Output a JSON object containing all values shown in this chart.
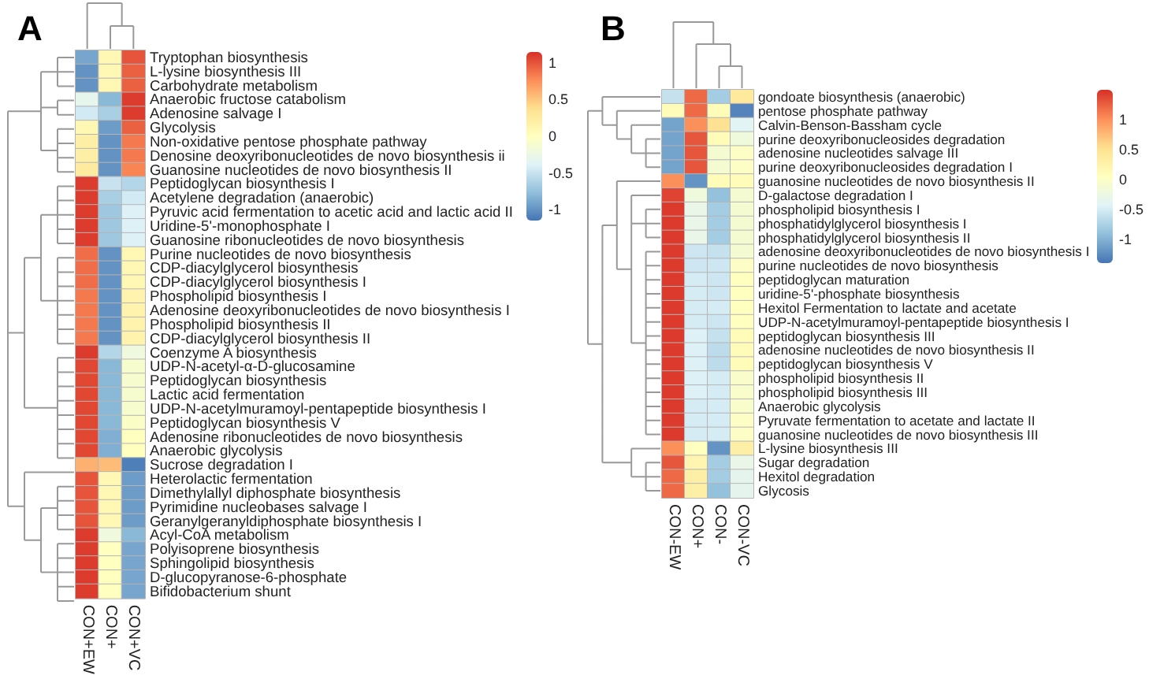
{
  "chart_data": [
    {
      "type": "heatmap",
      "title": "A",
      "categories": [
        "CON+EW",
        "CON+",
        "CON+VC"
      ],
      "y_categories": [
        "Tryptophan biosynthesis",
        "L-lysine biosynthesis III",
        "Carbohydrate metabolism",
        "Anaerobic fructose catabolism",
        "Adenosine salvage I",
        "Glycolysis",
        "Non-oxidative pentose phosphate pathway",
        "Denosine deoxyribonucleotides de novo biosynthesis ii",
        "Guanosine nucleotides de novo biosynthesis II",
        "Peptidoglycan biosynthesis I",
        "Acetylene degradation (anaerobic)",
        "Pyruvic acid fermentation to acetic acid and lactic acid II",
        "Uridine-5'-monophosphate I",
        "Guanosine ribonucleotides de novo biosynthesis",
        "Purine nucleotides de novo biosynthesis",
        "CDP-diacylglycerol biosynthesis",
        "CDP-diacylglycerol biosynthesis I",
        "Phospholipid biosynthesis I",
        "Adenosine deoxyribonucleotides de novo biosynthesis I",
        "Phospholipid biosynthesis II",
        "CDP-diacylglycerol biosynthesis II",
        "Coenzyme A biosynthesis",
        "UDP-N-acetyl-α-D-glucosamine",
        "Peptidoglycan biosynthesis",
        "Lactic acid fermentation",
        "UDP-N-acetylmuramoyl-pentapeptide biosynthesis I",
        "Peptidoglycan biosynthesis V",
        "Adenosine ribonucleotides de novo biosynthesis",
        "Anaerobic glycolysis",
        "Sucrose degradation I",
        "Heterolactic fermentation",
        "Dimethylallyl diphosphate biosynthesis",
        "Pyrimidine nucleobases salvage I",
        "Geranylgeranyldiphosphate biosynthesis I",
        "Acyl-CoA metabolism",
        "Polyisoprene biosynthesis",
        "Sphingolipid biosynthesis",
        "D-glucopyranose-6-phosphate",
        "Bifidobacterium shunt"
      ],
      "cells": [
        [
          -0.9,
          0.1,
          1.0
        ],
        [
          -1.0,
          0.1,
          0.95
        ],
        [
          -1.0,
          0.1,
          0.95
        ],
        [
          -0.3,
          -0.8,
          1.1
        ],
        [
          -0.45,
          -0.65,
          1.1
        ],
        [
          0.1,
          -0.95,
          0.95
        ],
        [
          0.2,
          -1.0,
          0.85
        ],
        [
          0.2,
          -1.0,
          0.85
        ],
        [
          0.25,
          -1.0,
          0.8
        ],
        [
          1.1,
          -0.5,
          -0.6
        ],
        [
          1.1,
          -0.65,
          -0.45
        ],
        [
          1.1,
          -0.7,
          -0.4
        ],
        [
          1.1,
          -0.7,
          -0.4
        ],
        [
          1.1,
          -0.7,
          -0.4
        ],
        [
          0.9,
          -1.0,
          0.1
        ],
        [
          0.9,
          -1.0,
          0.1
        ],
        [
          0.9,
          -1.0,
          0.1
        ],
        [
          0.85,
          -1.0,
          0.15
        ],
        [
          0.85,
          -1.0,
          0.15
        ],
        [
          0.85,
          -1.0,
          0.15
        ],
        [
          0.85,
          -1.0,
          0.15
        ],
        [
          1.1,
          -0.6,
          -0.2
        ],
        [
          1.05,
          -0.8,
          -0.1
        ],
        [
          1.05,
          -0.8,
          -0.1
        ],
        [
          1.05,
          -0.8,
          -0.1
        ],
        [
          1.05,
          -0.8,
          -0.1
        ],
        [
          1.05,
          -0.8,
          -0.05
        ],
        [
          1.05,
          -0.85,
          0
        ],
        [
          1.05,
          -0.85,
          0
        ],
        [
          0.6,
          0.55,
          -1.1
        ],
        [
          1.0,
          0.1,
          -0.95
        ],
        [
          1.0,
          0.1,
          -0.95
        ],
        [
          1.0,
          0.1,
          -0.95
        ],
        [
          1.0,
          0.1,
          -0.95
        ],
        [
          1.1,
          -0.2,
          -0.8
        ],
        [
          1.1,
          0,
          -0.9
        ],
        [
          1.1,
          0,
          -0.9
        ],
        [
          1.1,
          0,
          -0.9
        ],
        [
          1.1,
          0,
          -0.9
        ]
      ],
      "clim": [
        -1.15,
        1.15
      ],
      "cticks": [
        -1,
        -0.5,
        0,
        0.5,
        1
      ],
      "colors": [
        "#4575b4",
        "#91bfdb",
        "#e0f3f8",
        "#ffffbf",
        "#fee090",
        "#fc8d59",
        "#d73027"
      ]
    },
    {
      "type": "heatmap",
      "title": "B",
      "categories": [
        "CON-EW",
        "CON+",
        "CON-",
        "CON-VC"
      ],
      "y_categories": [
        "gondoate biosynthesis (anaerobic)",
        "pentose phosphate pathway",
        "Calvin-Benson-Bassham cycle",
        "purine deoxyribonucleosides degradation",
        "adenosine nucleotides salvage III",
        "purine deoxyribonucleosides degradation I",
        "guanosine nucleotides de novo biosynthesis II",
        "D-galactose degradation I",
        "phospholipid biosynthesis I",
        "phosphatidylglycerol biosynthesis I",
        "phosphatidylglycerol biosynthesis II",
        "adenosine deoxyribonucleotides de novo biosynthesis I",
        "purine nucleotides de novo biosynthesis",
        "peptidoglycan maturation",
        "uridine-5'-phosphate biosynthesis",
        "Hexitol Fermentation to lactate and acetate",
        "UDP-N-acetylmuramoyl-pentapeptide biosynthesis I",
        "peptidoglycan biosynthesis III",
        "adenosine nucleotides de novo biosynthesis II",
        "peptidoglycan biosynthesis V",
        "phospholipid biosynthesis II",
        "phospholipid biosynthesis III",
        "Anaerobic glycolysis",
        "Pyruvate fermentation to acetate and lactate II",
        "guanosine nucleotides de novo biosynthesis III",
        "L-lysine biosynthesis III",
        "Sugar degradation",
        "Hexitol degradation",
        "Glycosis"
      ],
      "cells": [
        [
          -0.6,
          1.2,
          -0.8,
          0.4
        ],
        [
          0.1,
          1.2,
          0.1,
          -1.3
        ],
        [
          -1.1,
          1.0,
          0.5,
          -0.4
        ],
        [
          -1.1,
          1.3,
          0.1,
          -0.2
        ],
        [
          -1.1,
          1.3,
          -0.1,
          0
        ],
        [
          -1.1,
          1.3,
          -0.1,
          0
        ],
        [
          1.0,
          -1.2,
          0.1,
          0.1
        ],
        [
          1.4,
          -0.2,
          -0.9,
          -0.1
        ],
        [
          1.45,
          -0.3,
          -0.8,
          -0.1
        ],
        [
          1.45,
          -0.3,
          -0.8,
          -0.1
        ],
        [
          1.45,
          -0.3,
          -0.8,
          -0.1
        ],
        [
          1.45,
          -0.55,
          -0.6,
          -0.1
        ],
        [
          1.45,
          -0.55,
          -0.55,
          0
        ],
        [
          1.45,
          -0.5,
          -0.55,
          0.05
        ],
        [
          1.45,
          -0.5,
          -0.55,
          0.05
        ],
        [
          1.45,
          -0.5,
          -0.5,
          0.05
        ],
        [
          1.45,
          -0.5,
          -0.55,
          0.05
        ],
        [
          1.45,
          -0.45,
          -0.6,
          0.1
        ],
        [
          1.45,
          -0.45,
          -0.65,
          0.1
        ],
        [
          1.45,
          -0.45,
          -0.65,
          0.1
        ],
        [
          1.45,
          -0.45,
          -0.5,
          -0.05
        ],
        [
          1.45,
          -0.45,
          -0.5,
          -0.05
        ],
        [
          1.45,
          -0.5,
          -0.5,
          -0.05
        ],
        [
          1.45,
          -0.5,
          -0.5,
          0
        ],
        [
          1.45,
          -0.5,
          -0.5,
          0
        ],
        [
          1.0,
          0.05,
          -1.2,
          0.3
        ],
        [
          1.3,
          0.2,
          -0.8,
          -0.3
        ],
        [
          1.2,
          0.3,
          -0.8,
          -0.35
        ],
        [
          1.2,
          0.3,
          -0.9,
          -0.35
        ]
      ],
      "clim": [
        -1.4,
        1.5
      ],
      "cticks": [
        -1,
        -0.5,
        0,
        0.5,
        1
      ],
      "colors": [
        "#4575b4",
        "#91bfdb",
        "#e0f3f8",
        "#ffffbf",
        "#fee090",
        "#fc8d59",
        "#d73027"
      ]
    }
  ]
}
